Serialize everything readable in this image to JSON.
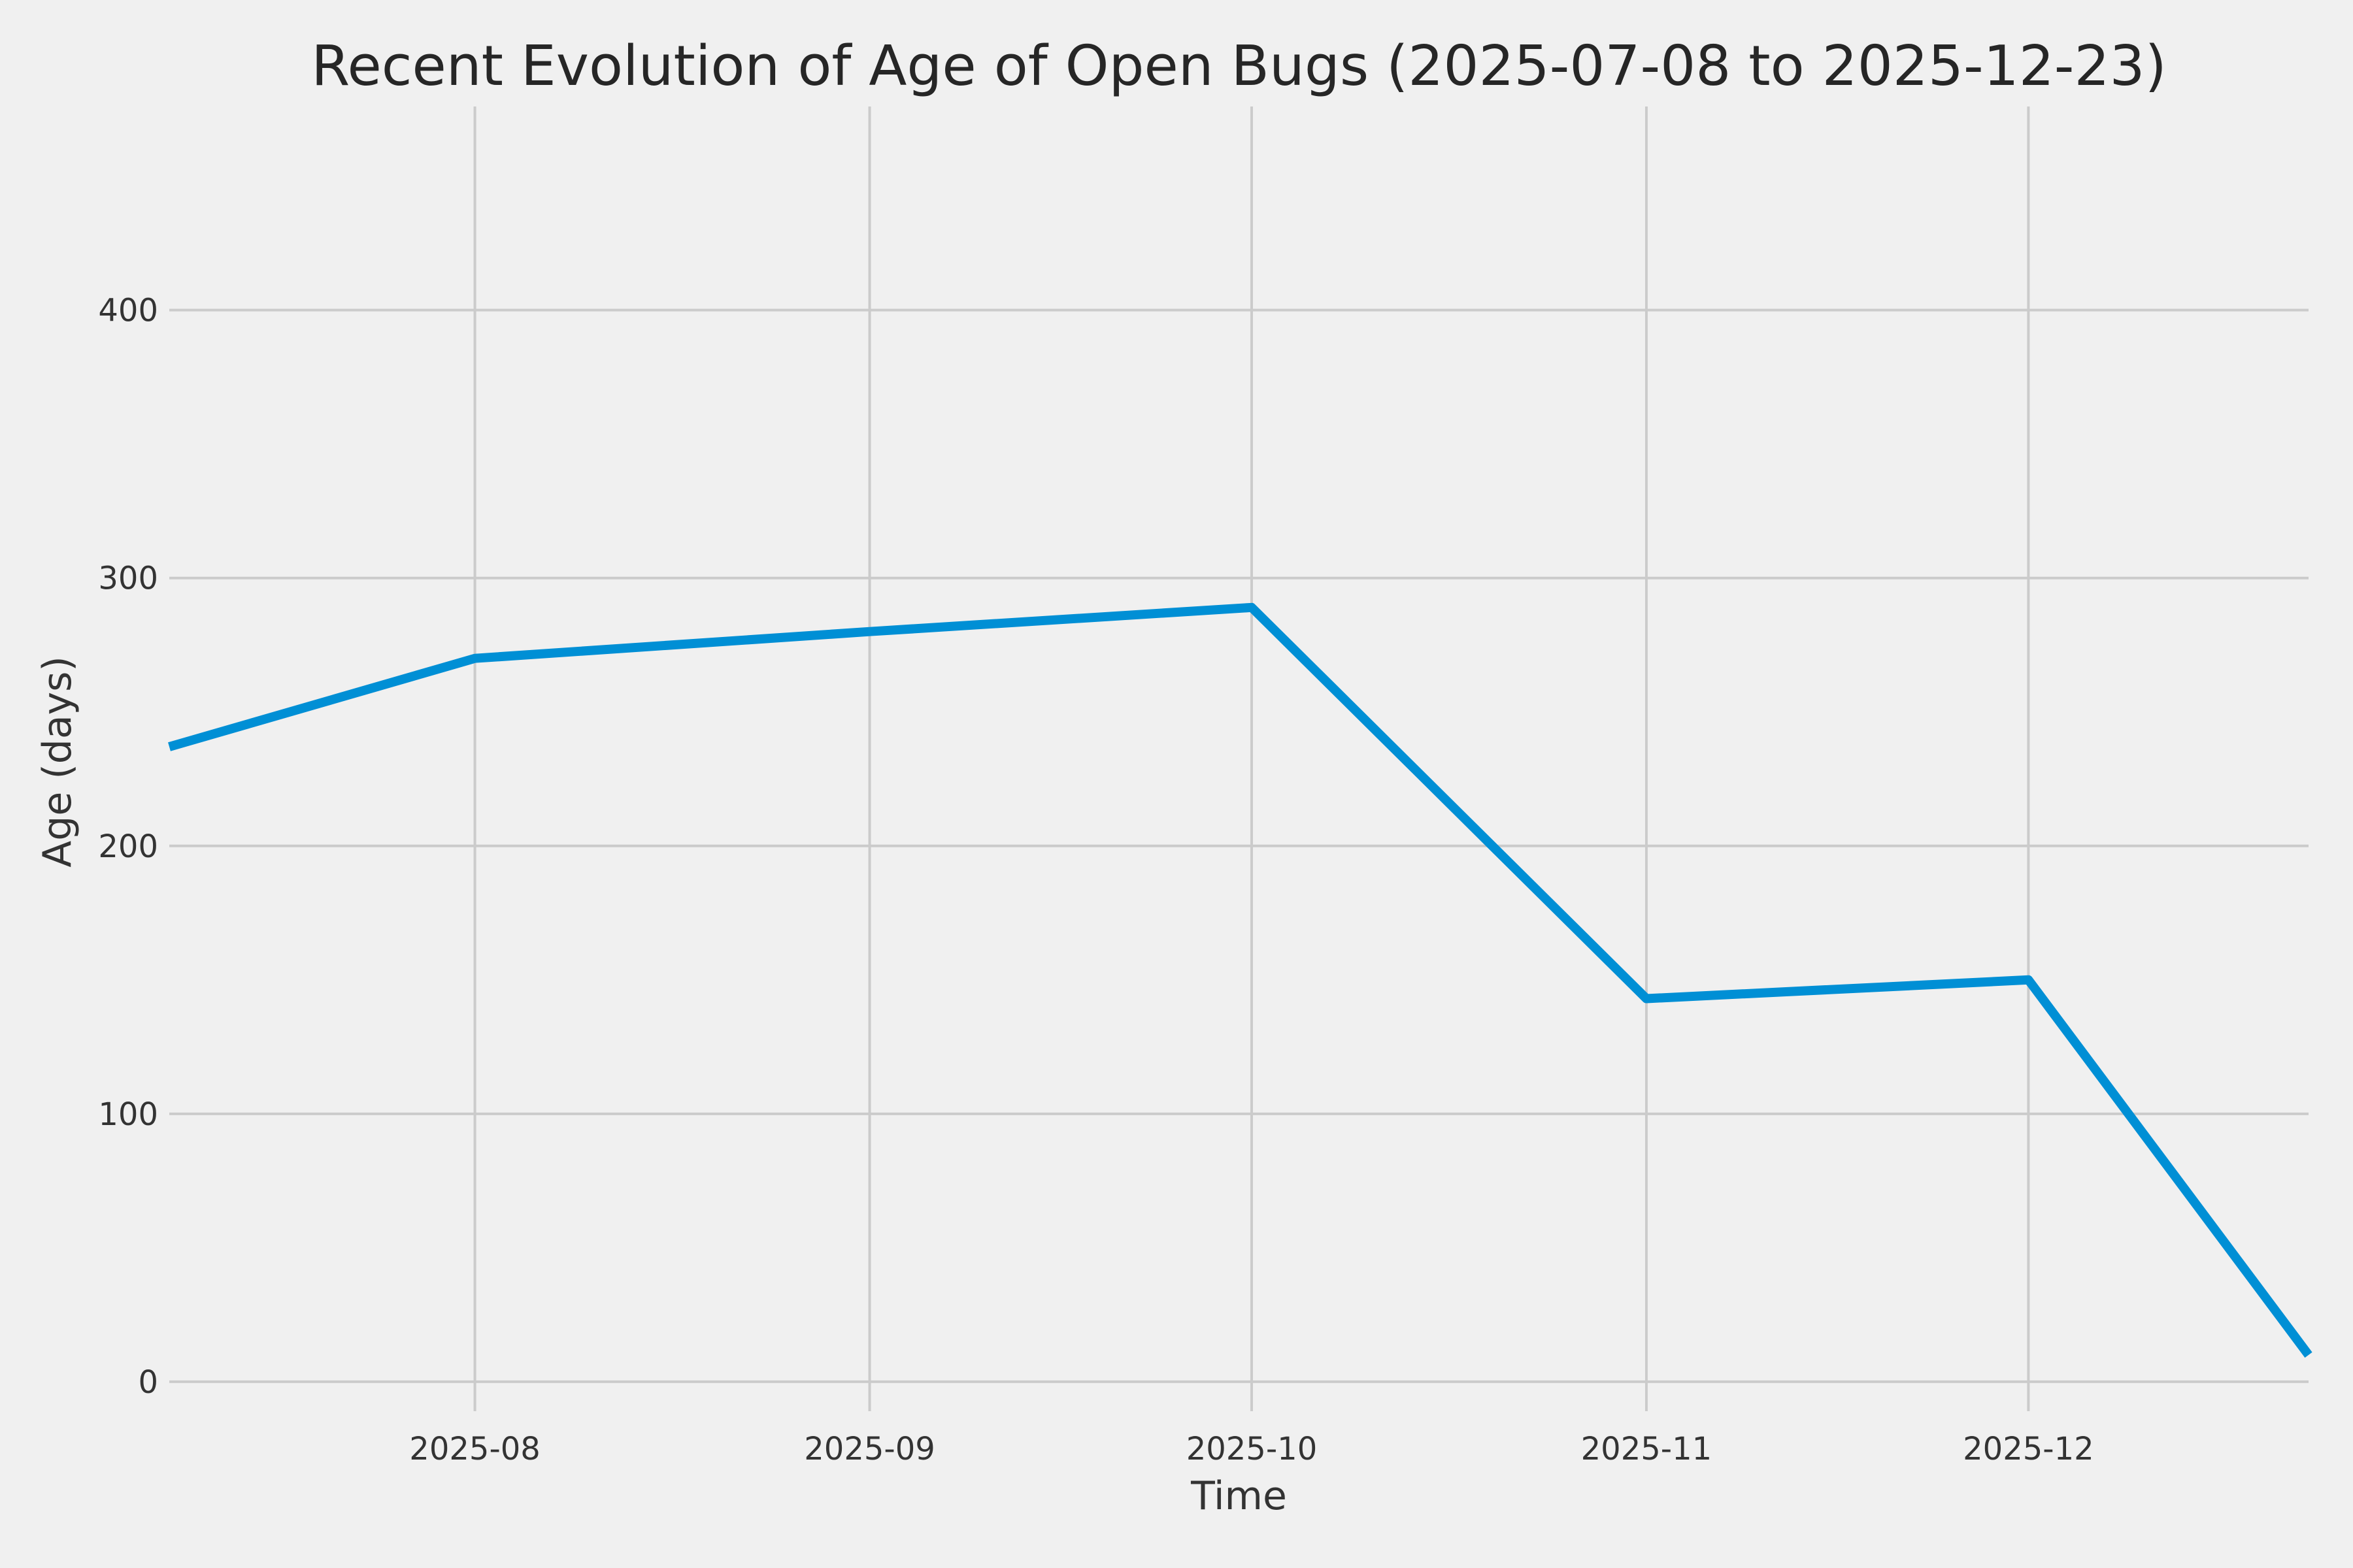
{
  "figure": {
    "background_color": "#f0f0f0",
    "plot_background_color": "#f0f0f0"
  },
  "chart_data": {
    "type": "line",
    "title": "Recent Evolution of Age of Open Bugs (2025-07-08 to 2025-12-23)",
    "xlabel": "Time",
    "ylabel": "Age (days)",
    "series": [
      {
        "name": "Age of Open Bugs",
        "x_dates": [
          "2025-07-08",
          "2025-08-01",
          "2025-09-01",
          "2025-10-01",
          "2025-11-01",
          "2025-12-01",
          "2025-12-23"
        ],
        "x_days_from_start": [
          0,
          24,
          55,
          85,
          116,
          146,
          168
        ],
        "values": [
          237,
          270,
          280,
          289,
          143,
          150,
          10
        ]
      }
    ],
    "xticks": [
      {
        "label": "2025-08",
        "day": 24
      },
      {
        "label": "2025-09",
        "day": 55
      },
      {
        "label": "2025-10",
        "day": 85
      },
      {
        "label": "2025-11",
        "day": 116
      },
      {
        "label": "2025-12",
        "day": 146
      }
    ],
    "yticks": [
      0,
      100,
      200,
      300,
      400
    ],
    "xlim_days": [
      0,
      168
    ],
    "ylim": [
      -11,
      476
    ],
    "grid": true,
    "legend": "none",
    "line_color": "#008fd5",
    "grid_color": "#cbcbcb",
    "title_color": "#262626",
    "tick_color": "#333333"
  }
}
